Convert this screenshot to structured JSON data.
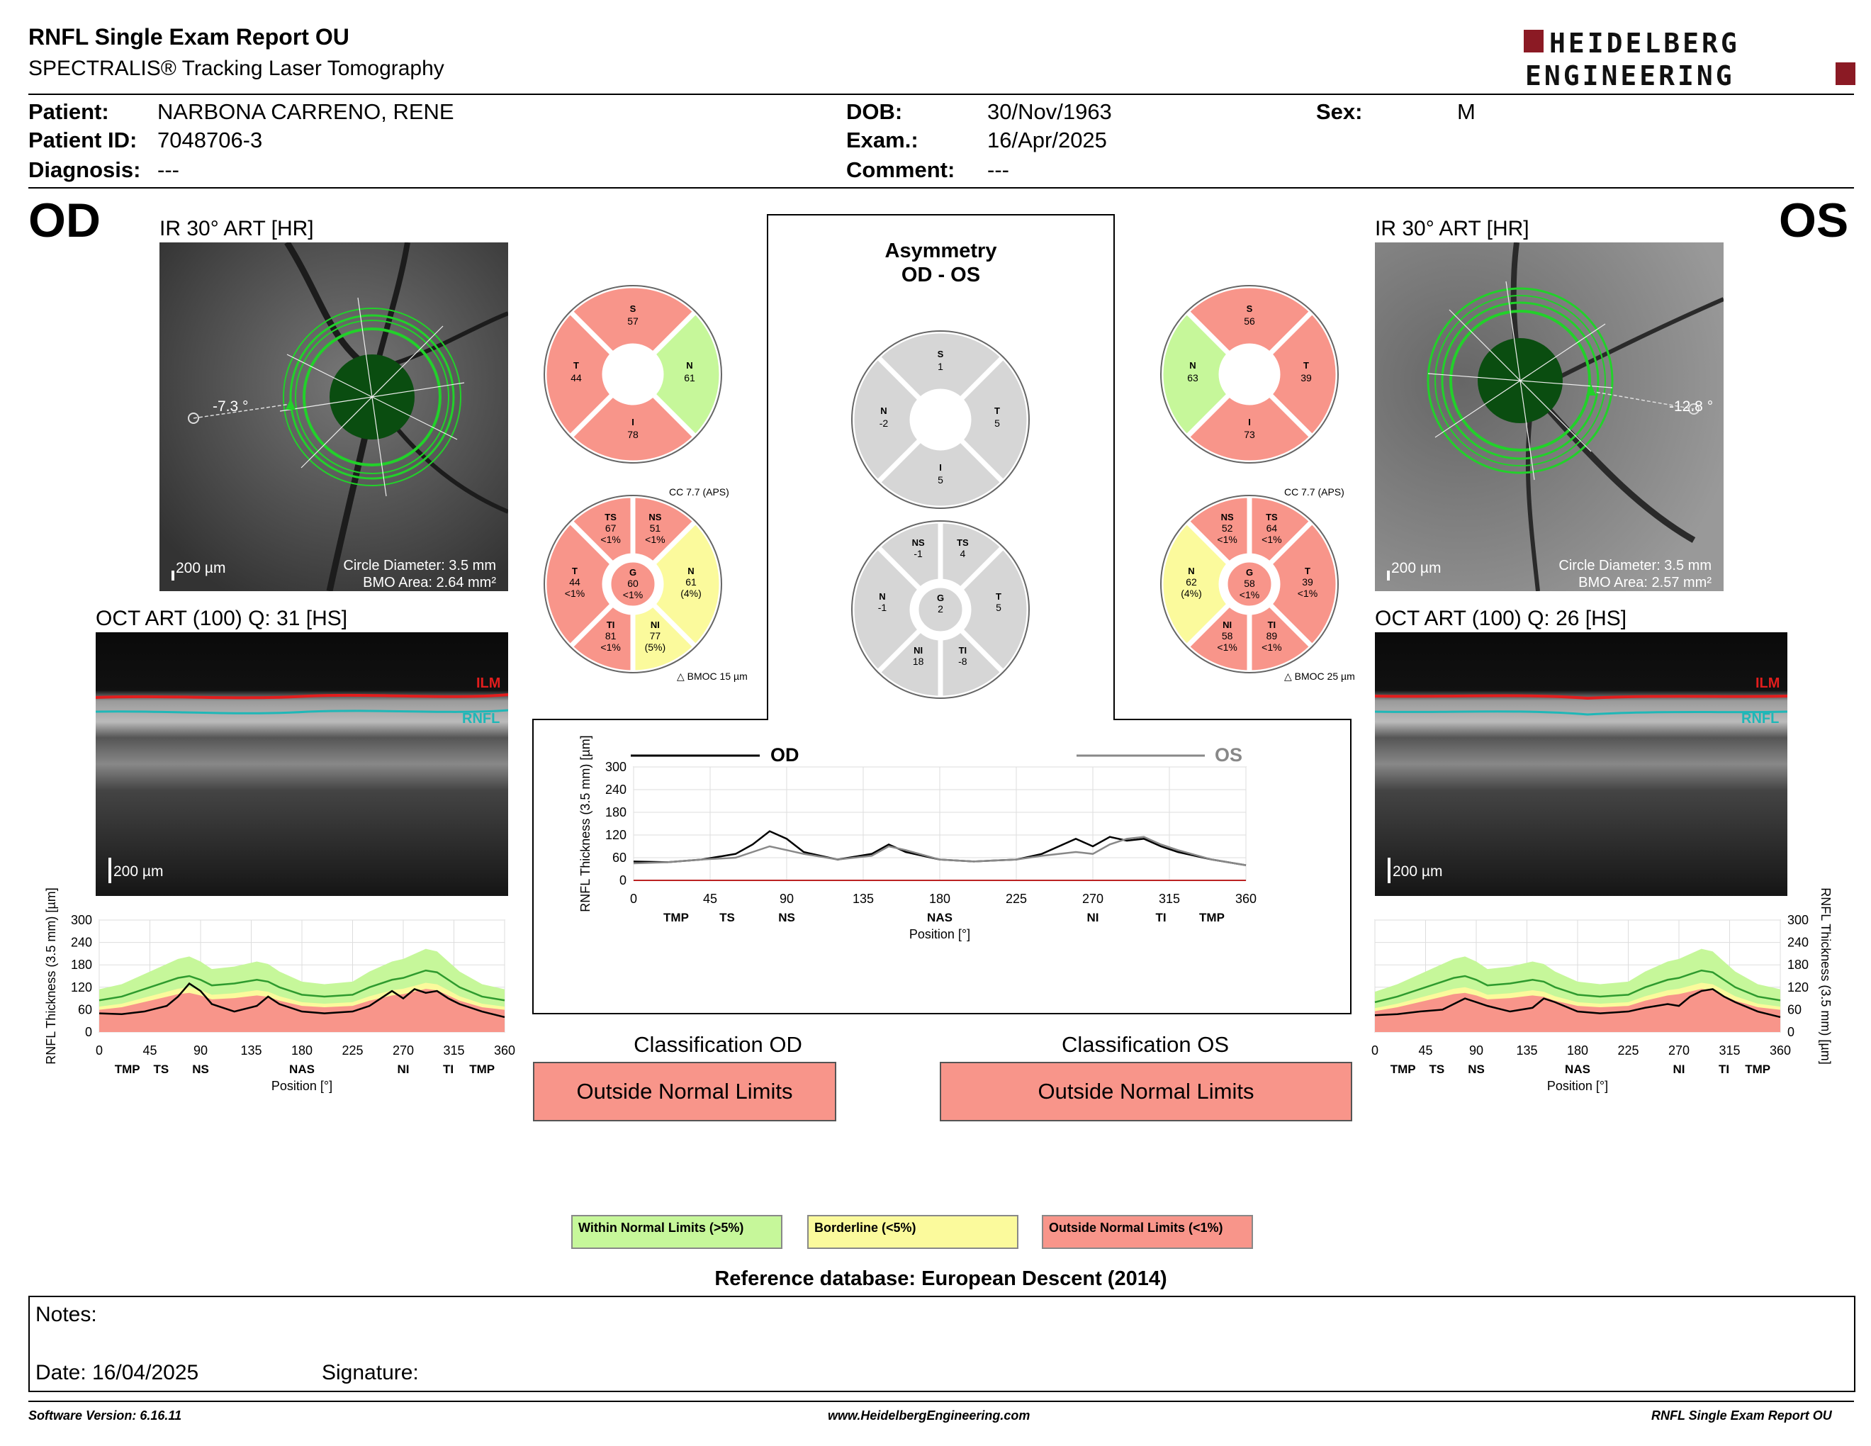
{
  "report": {
    "title": "RNFL Single Exam Report OU",
    "subtitle": "SPECTRALIS® Tracking Laser Tomography",
    "logo": {
      "line1": "HEIDELBERG",
      "line2": "ENGINEERING",
      "color": "#8b1a24"
    }
  },
  "patient": {
    "name_label": "Patient:",
    "name": "NARBONA CARRENO, RENE",
    "id_label": "Patient ID:",
    "id": "7048706-3",
    "diagnosis_label": "Diagnosis:",
    "diagnosis": "---",
    "dob_label": "DOB:",
    "dob": "30/Nov/1963",
    "exam_label": "Exam.:",
    "exam": "16/Apr/2025",
    "comment_label": "Comment:",
    "comment": "---",
    "sex_label": "Sex:",
    "sex": "M"
  },
  "od": {
    "eye": "OD",
    "ir_title": "IR 30° ART [HR]",
    "angle": "-7.3 °",
    "scale": "200 µm",
    "circle_diameter": "Circle Diameter: 3.5 mm",
    "bmo_area": "BMO Area: 2.64 mm²",
    "oct_title": "OCT ART (100) Q: 31 [HS]",
    "oct_scale": "200 µm",
    "ilm": "ILM",
    "rnfl": "RNFL",
    "sectors6": {
      "S": {
        "value": "57",
        "class": "outside"
      },
      "N": {
        "value": "61",
        "class": "within"
      },
      "I": {
        "value": "78",
        "class": "outside"
      },
      "T": {
        "value": "44",
        "class": "outside"
      }
    },
    "cc": "CC 7.7 (APS)",
    "bmoc": "BMOC 15 µm",
    "sectors_garway": {
      "TS": {
        "value": "67",
        "pct": "<1%",
        "class": "outside"
      },
      "NS": {
        "value": "51",
        "pct": "<1%",
        "class": "outside"
      },
      "N": {
        "value": "61",
        "pct": "(4%)",
        "class": "borderline"
      },
      "NI": {
        "value": "77",
        "pct": "(5%)",
        "class": "borderline"
      },
      "TI": {
        "value": "81",
        "pct": "<1%",
        "class": "outside"
      },
      "T": {
        "value": "44",
        "pct": "<1%",
        "class": "outside"
      },
      "G": {
        "value": "60",
        "pct": "<1%",
        "class": "outside"
      }
    },
    "classification_title": "Classification OD",
    "classification": "Outside Normal Limits"
  },
  "os": {
    "eye": "OS",
    "ir_title": "IR 30° ART [HR]",
    "angle": "-12.8 °",
    "scale": "200 µm",
    "circle_diameter": "Circle Diameter: 3.5 mm",
    "bmo_area": "BMO Area: 2.57 mm²",
    "oct_title": "OCT ART (100) Q: 26 [HS]",
    "oct_scale": "200 µm",
    "ilm": "ILM",
    "rnfl": "RNFL",
    "sectors6": {
      "S": {
        "value": "56",
        "class": "outside"
      },
      "N": {
        "value": "63",
        "class": "within"
      },
      "I": {
        "value": "73",
        "class": "outside"
      },
      "T": {
        "value": "39",
        "class": "outside"
      }
    },
    "cc": "CC 7.7 (APS)",
    "bmoc": "BMOC 25 µm",
    "sectors_garway": {
      "NS": {
        "value": "52",
        "pct": "<1%",
        "class": "outside"
      },
      "TS": {
        "value": "64",
        "pct": "<1%",
        "class": "outside"
      },
      "T": {
        "value": "39",
        "pct": "<1%",
        "class": "outside"
      },
      "TI": {
        "value": "89",
        "pct": "<1%",
        "class": "outside"
      },
      "NI": {
        "value": "58",
        "pct": "<1%",
        "class": "outside"
      },
      "N": {
        "value": "62",
        "pct": "(4%)",
        "class": "borderline"
      },
      "G": {
        "value": "58",
        "pct": "<1%",
        "class": "outside"
      }
    },
    "classification_title": "Classification OS",
    "classification": "Outside Normal Limits"
  },
  "asymmetry": {
    "title1": "Asymmetry",
    "title2": "OD - OS",
    "sectors6": {
      "S": "1",
      "N": "-2",
      "T": "5",
      "I": "5"
    },
    "sectors_garway": {
      "NS": "-1",
      "TS": "4",
      "N": "-1",
      "G": "2",
      "T": "5",
      "NI": "18",
      "TI": "-8"
    }
  },
  "colors": {
    "within": "#c6f79a",
    "borderline": "#fbfa9c",
    "outside": "#f8958a",
    "neutral": "#d6d6d6"
  },
  "chart_data": [
    {
      "type": "line",
      "name": "od-profile",
      "ylabel": "RNFL Thickness (3.5 mm) [µm]",
      "xlabel": "Position [°]",
      "ylim": [
        0,
        300
      ],
      "xlim": [
        0,
        360
      ],
      "yticks": [
        "0",
        "60",
        "120",
        "180",
        "240",
        "300"
      ],
      "xticks": [
        "0",
        "45",
        "90",
        "135",
        "180",
        "225",
        "270",
        "315",
        "360"
      ],
      "sector_labels": [
        "TMP",
        "TS",
        "NS",
        "NAS",
        "NI",
        "TI",
        "TMP"
      ],
      "x": [
        0,
        20,
        40,
        60,
        70,
        80,
        90,
        100,
        120,
        140,
        150,
        160,
        180,
        200,
        225,
        240,
        260,
        270,
        280,
        290,
        300,
        310,
        320,
        340,
        360
      ],
      "series": [
        {
          "values": [
            50,
            48,
            55,
            70,
            95,
            130,
            110,
            75,
            55,
            70,
            95,
            75,
            55,
            50,
            55,
            70,
            110,
            90,
            115,
            105,
            110,
            90,
            75,
            55,
            40
          ]
        },
        {
          "values": [
            85,
            95,
            115,
            135,
            145,
            150,
            140,
            125,
            130,
            140,
            135,
            120,
            100,
            95,
            100,
            120,
            140,
            145,
            155,
            165,
            160,
            140,
            120,
            95,
            85
          ]
        }
      ]
    },
    {
      "type": "line",
      "name": "os-profile",
      "ylabel": "RNFL Thickness (3.5 mm) [µm]",
      "xlabel": "Position [°]",
      "ylim": [
        0,
        300
      ],
      "xlim": [
        0,
        360
      ],
      "yticks": [
        "0",
        "60",
        "120",
        "180",
        "240",
        "300"
      ],
      "xticks": [
        "0",
        "45",
        "90",
        "135",
        "180",
        "225",
        "270",
        "315",
        "360"
      ],
      "sector_labels": [
        "TMP",
        "TS",
        "NS",
        "NAS",
        "NI",
        "TI",
        "TMP"
      ],
      "x": [
        0,
        20,
        40,
        60,
        70,
        80,
        90,
        100,
        120,
        140,
        150,
        160,
        180,
        200,
        225,
        240,
        260,
        270,
        280,
        290,
        300,
        310,
        320,
        340,
        360
      ],
      "series": [
        {
          "values": [
            45,
            48,
            55,
            60,
            75,
            90,
            80,
            70,
            55,
            65,
            90,
            80,
            55,
            50,
            55,
            65,
            75,
            70,
            95,
            110,
            115,
            95,
            80,
            55,
            40
          ]
        },
        {
          "values": [
            80,
            95,
            115,
            135,
            145,
            150,
            140,
            125,
            130,
            140,
            135,
            120,
            100,
            95,
            100,
            120,
            140,
            145,
            155,
            165,
            160,
            140,
            120,
            95,
            85
          ]
        }
      ]
    },
    {
      "type": "line",
      "name": "comparison",
      "ylabel": "RNFL Thickness (3.5 mm) [µm]",
      "xlabel": "Position [°]",
      "ylim": [
        0,
        300
      ],
      "xlim": [
        0,
        360
      ],
      "yticks": [
        "0",
        "60",
        "120",
        "180",
        "240",
        "300"
      ],
      "xticks": [
        "0",
        "45",
        "90",
        "135",
        "180",
        "225",
        "270",
        "315",
        "360"
      ],
      "sector_labels": [
        "TMP",
        "TS",
        "NS",
        "NAS",
        "NI",
        "TI",
        "TMP"
      ],
      "x": [
        0,
        20,
        40,
        60,
        70,
        80,
        90,
        100,
        120,
        140,
        150,
        160,
        180,
        200,
        225,
        240,
        260,
        270,
        280,
        290,
        300,
        310,
        320,
        340,
        360
      ],
      "series": [
        {
          "name": "OD",
          "color": "#000000",
          "values": [
            50,
            48,
            55,
            70,
            95,
            130,
            110,
            75,
            55,
            70,
            95,
            75,
            55,
            50,
            55,
            70,
            110,
            90,
            115,
            105,
            110,
            90,
            75,
            55,
            40
          ]
        },
        {
          "name": "OS",
          "color": "#888888",
          "values": [
            45,
            48,
            55,
            60,
            75,
            90,
            80,
            70,
            55,
            65,
            90,
            80,
            55,
            50,
            55,
            65,
            75,
            70,
            95,
            110,
            115,
            95,
            80,
            55,
            40
          ]
        }
      ]
    }
  ],
  "legend": {
    "within": "Within Normal Limits (>5%)",
    "borderline": "Borderline (<5%)",
    "outside": "Outside Normal Limits (<1%)"
  },
  "reference": "Reference database: European Descent (2014)",
  "notes": {
    "notes_label": "Notes:",
    "date": "Date: 16/04/2025",
    "signature": "Signature:"
  },
  "footer": {
    "software": "Software Version: 6.16.11",
    "website": "www.HeidelbergEngineering.com",
    "report": "RNFL Single Exam Report OU"
  }
}
